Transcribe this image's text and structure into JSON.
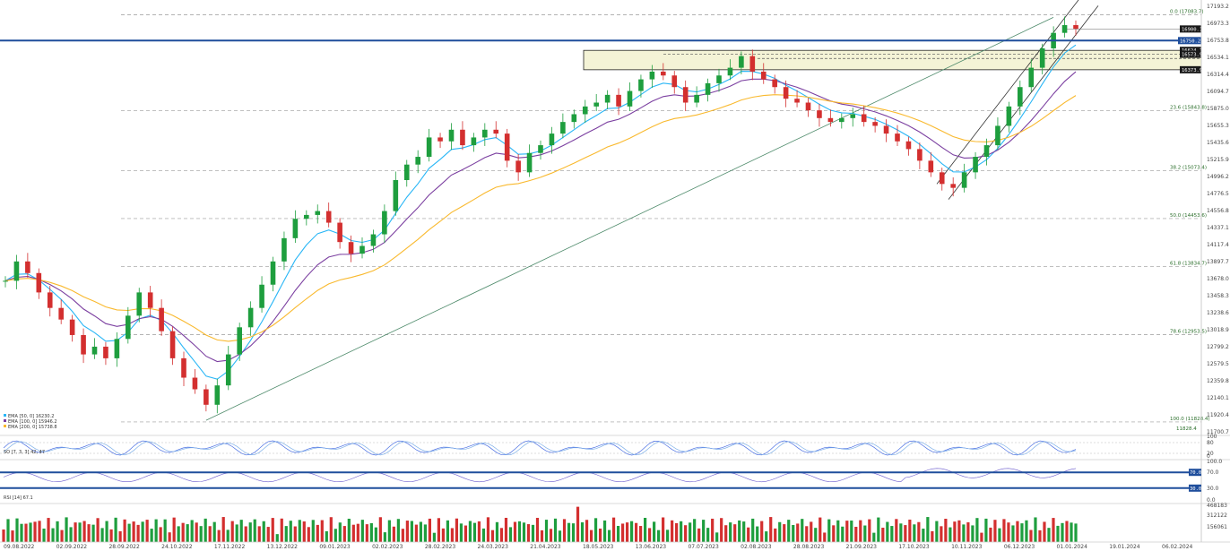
{
  "chart_data": {
    "type": "candlestick",
    "price_ticks": [
      "17193.2",
      "16973.3",
      "16753.8",
      "16534.1",
      "16314.4",
      "16094.7",
      "15875.0",
      "15655.3",
      "15435.6",
      "15215.9",
      "14996.2",
      "14776.5",
      "14556.8",
      "14337.1",
      "14117.4",
      "13897.7",
      "13678.0",
      "13458.3",
      "13238.6",
      "13018.9",
      "12799.2",
      "12579.5",
      "12359.8",
      "12140.1",
      "11920.4",
      "11700.7"
    ],
    "price_range": [
      11700.7,
      17193.2
    ],
    "date_labels": [
      "09.08.2022",
      "02.09.2022",
      "28.09.2022",
      "24.10.2022",
      "17.11.2022",
      "13.12.2022",
      "09.01.2023",
      "02.02.2023",
      "28.02.2023",
      "24.03.2023",
      "21.04.2023",
      "18.05.2023",
      "13.06.2023",
      "07.07.2023",
      "02.08.2023",
      "28.08.2023",
      "21.09.2023",
      "17.10.2023",
      "10.11.2023",
      "06.12.2023",
      "01.01.2024",
      "19.01.2024",
      "06.02.2024"
    ],
    "fib_levels": [
      {
        "label": "0.0 (17083.7)",
        "value": 17083.7
      },
      {
        "label": "23.6 (15843.8)",
        "value": 15843.8
      },
      {
        "label": "38.2 (15073.4)",
        "value": 15073.4
      },
      {
        "label": "50.0 (14453.6)",
        "value": 14453.6
      },
      {
        "label": "61.8 (13834.7)",
        "value": 13834.7
      },
      {
        "label": "78.6 (12953.5)",
        "value": 12953.5
      },
      {
        "label": "100.0 (11828.4)",
        "value": 11828.4
      }
    ],
    "horizontal_lines": [
      {
        "value": 16750.2,
        "label": "16750.2"
      }
    ],
    "zone": {
      "top": 16624.2,
      "bottom": 16373.9,
      "labels": [
        "16624.2",
        "16573.9",
        "16373.9"
      ]
    },
    "last_price_label": "16900.1",
    "extra_label": "11828.4",
    "legend": [
      {
        "text": "EMA [50, 0] 16230.2",
        "color": "#29b6f6"
      },
      {
        "text": "EMA [100, 0] 15946.2",
        "color": "#7b3fa0"
      },
      {
        "text": "EMA [200, 0] 15738.8",
        "color": "#f9b92e"
      }
    ],
    "series_close": [
      13650,
      13900,
      13750,
      13500,
      13300,
      13150,
      12950,
      12700,
      12800,
      12650,
      12900,
      13200,
      13500,
      13300,
      13000,
      12650,
      12400,
      12250,
      12050,
      12300,
      12700,
      13050,
      13300,
      13600,
      13900,
      14200,
      14450,
      14500,
      14550,
      14400,
      14150,
      14000,
      14100,
      14250,
      14550,
      14950,
      15150,
      15250,
      15500,
      15450,
      15600,
      15400,
      15500,
      15600,
      15550,
      15200,
      15050,
      15300,
      15400,
      15550,
      15700,
      15800,
      15900,
      15950,
      16050,
      15900,
      16100,
      16250,
      16350,
      16300,
      16150,
      15950,
      16050,
      16200,
      16300,
      16400,
      16550,
      16350,
      16250,
      16150,
      16000,
      15950,
      15850,
      15750,
      15700,
      15750,
      15800,
      15700,
      15650,
      15550,
      15450,
      15350,
      15200,
      15050,
      14900,
      14850,
      15050,
      15250,
      15400,
      15650,
      15900,
      16150,
      16400,
      16650,
      16850,
      16950,
      16900
    ],
    "stoch_range": [
      0,
      100
    ],
    "stoch_ticks": [
      "100",
      "80",
      "20",
      "0"
    ],
    "rsi_ticks": [
      "100.0",
      "70.0",
      "30.0",
      "0.0"
    ],
    "rsi_value_label": "70.0",
    "rsi_low_label": "30.0",
    "volume_ticks": [
      "468183",
      "312122",
      "156061"
    ],
    "stoch_label": "SO [7, 3, 3] 42, 47",
    "rsi_label": "RSI [14] 67.1"
  }
}
